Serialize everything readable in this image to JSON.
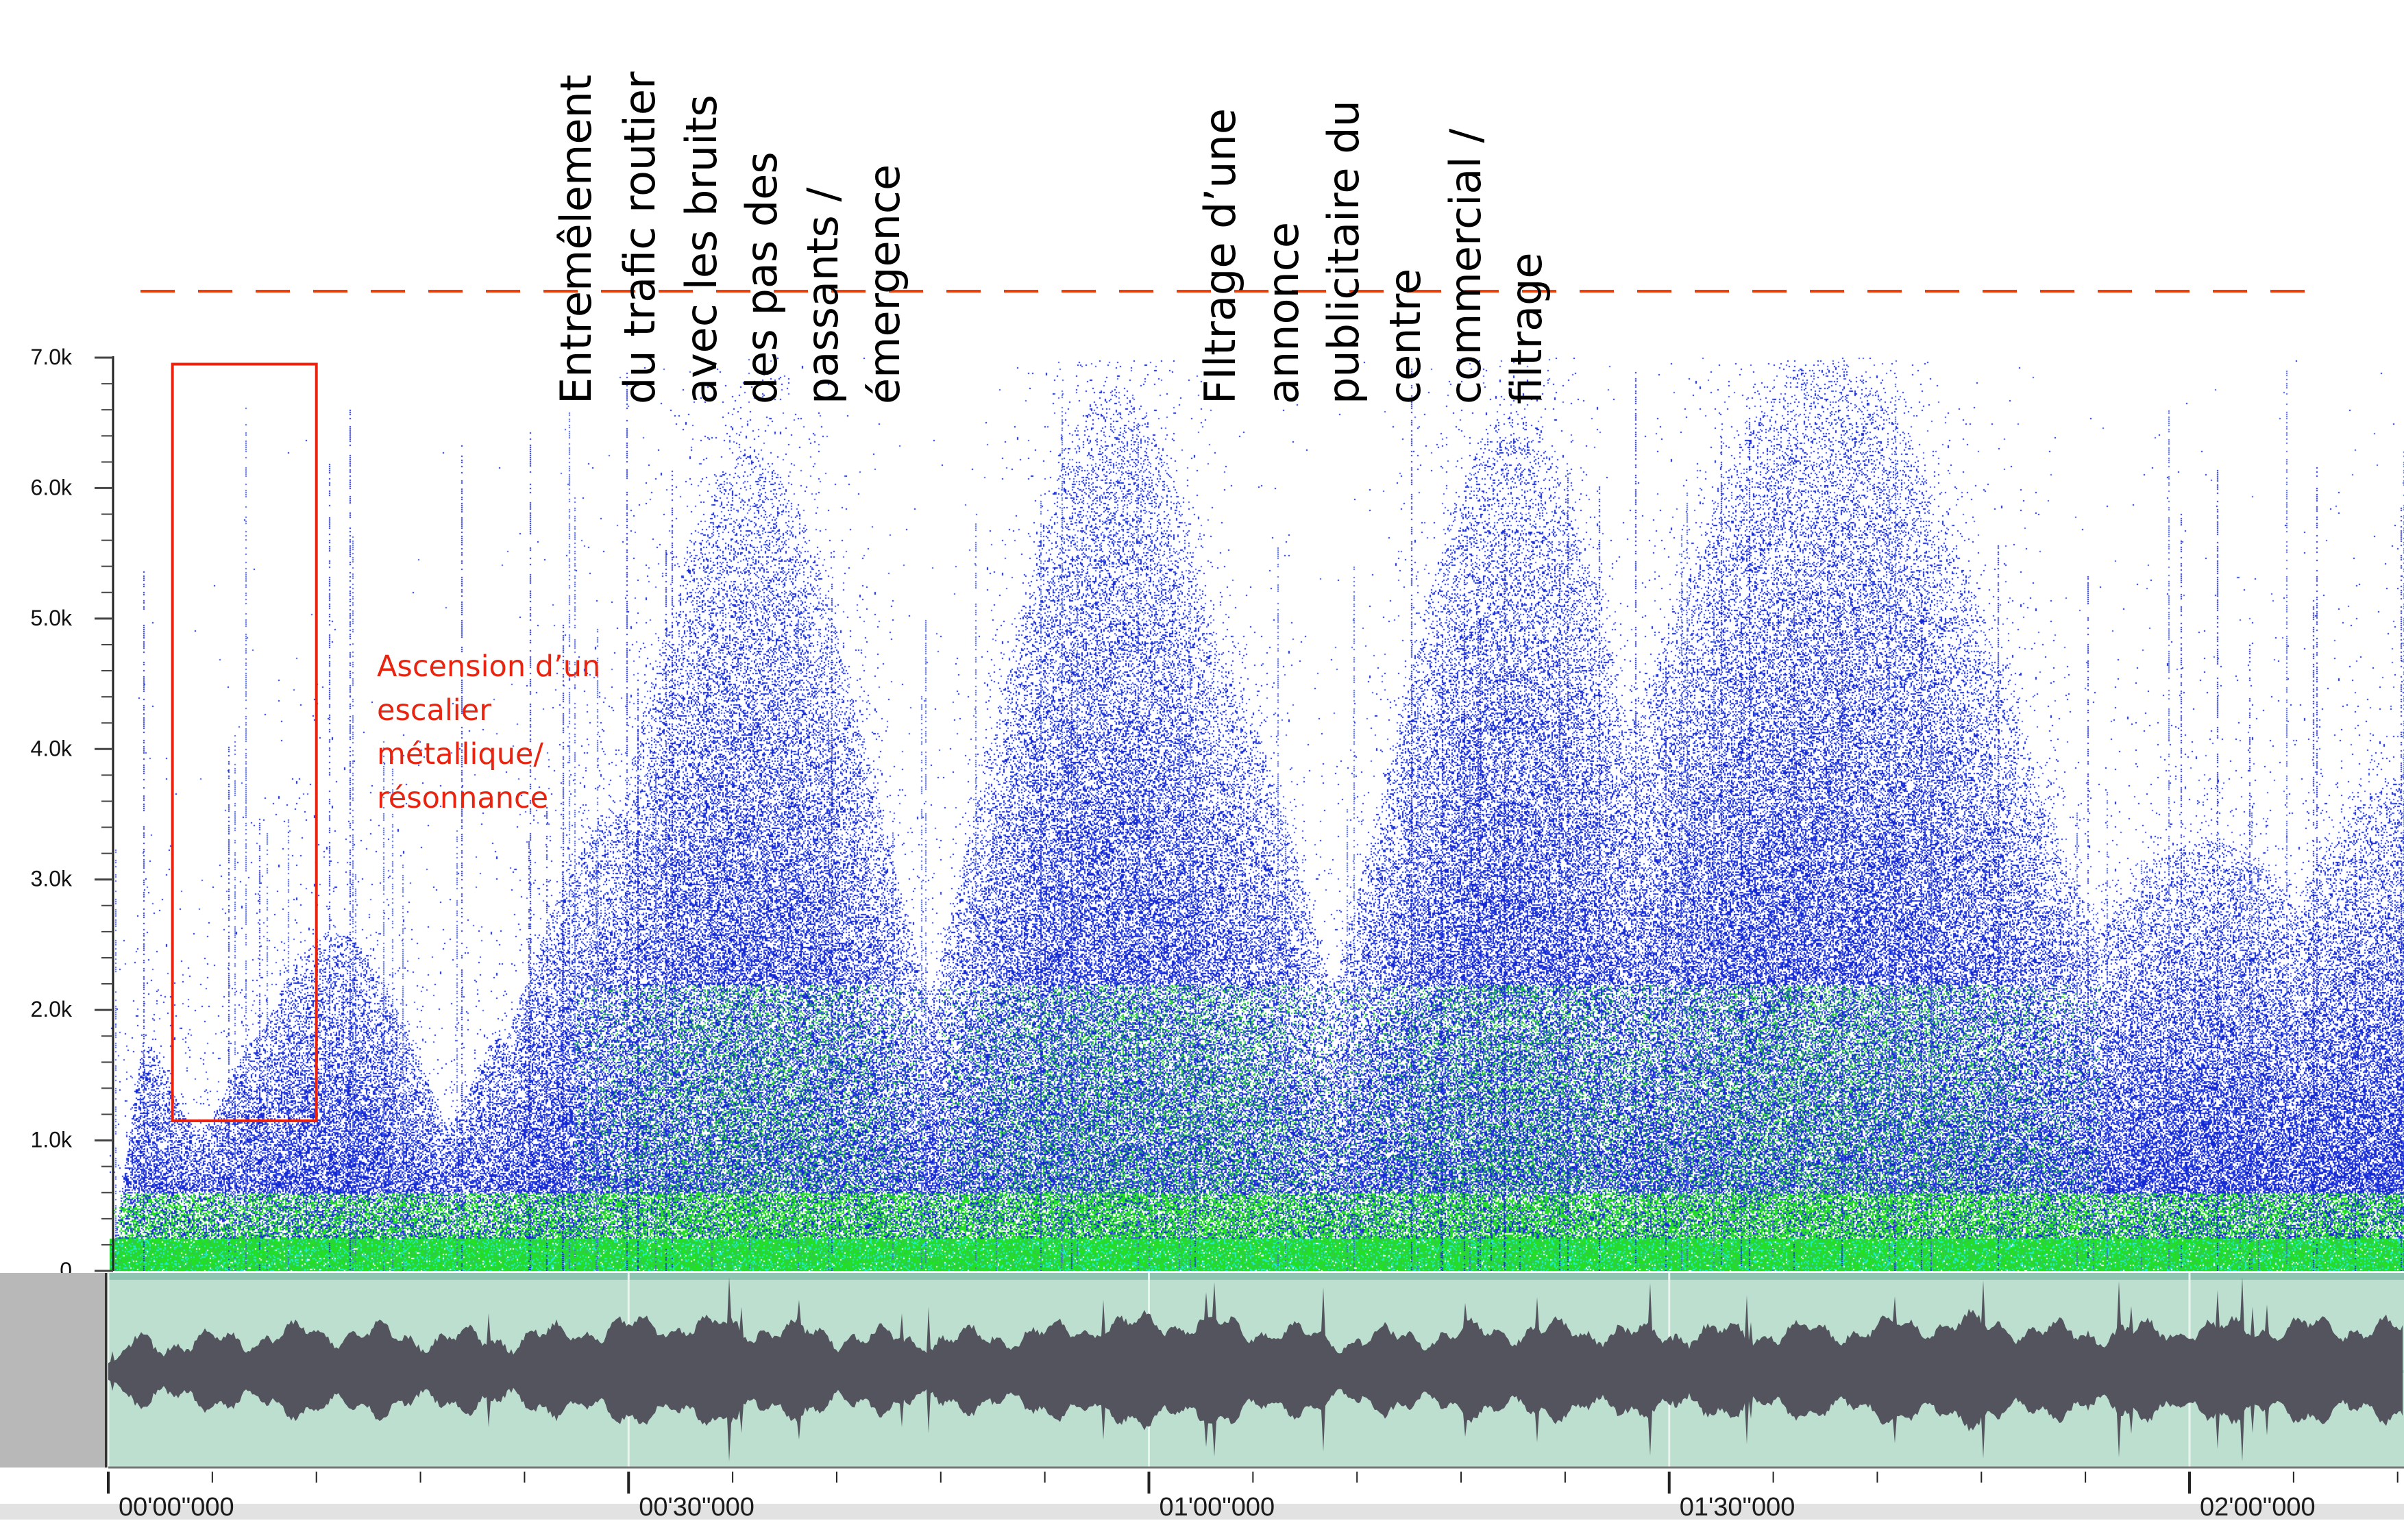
{
  "spectrogram": {
    "frequency_axis": {
      "tick_labels": [
        "0",
        "1.0k",
        "2.0k",
        "3.0k",
        "4.0k",
        "5.0k",
        "6.0k",
        "7.0k"
      ],
      "max_khz": 7.0
    },
    "duration_seconds": 140,
    "colors": {
      "low_energy": "#1428d2",
      "high_energy": "#22e022",
      "peak": "#20e8d8",
      "background": "#ffffff",
      "annotation_red": "#e8230f",
      "threshold_dash": "#e8400f"
    }
  },
  "annotations": {
    "threshold_line": {
      "style": "dashed"
    },
    "stairs_box": {
      "label_lines": [
        "Ascension d’un",
        "escalier",
        "métallique/",
        "résonnance"
      ],
      "freq_range_khz": [
        1.15,
        6.95
      ],
      "time_range_s": [
        3.7,
        12
      ]
    },
    "traffic_label": {
      "lines": [
        "Entremêlement",
        "du trafic routier",
        "avec les bruits",
        "des pas des",
        "passants /",
        "émergence"
      ]
    },
    "announcement_label": {
      "lines": [
        "FIltrage  d’une",
        "annonce",
        "publicitaire du",
        "centre",
        "commercial /",
        "filtrage"
      ]
    }
  },
  "waveform": {
    "fill_color": "#54545e",
    "background_color": "#bcdfd0"
  },
  "timeline": {
    "labels": [
      "00'00\"000",
      "00'30\"000",
      "01'00\"000",
      "01'30\"000",
      "02'00\"000"
    ],
    "seconds": [
      0,
      30,
      60,
      90,
      120
    ]
  }
}
